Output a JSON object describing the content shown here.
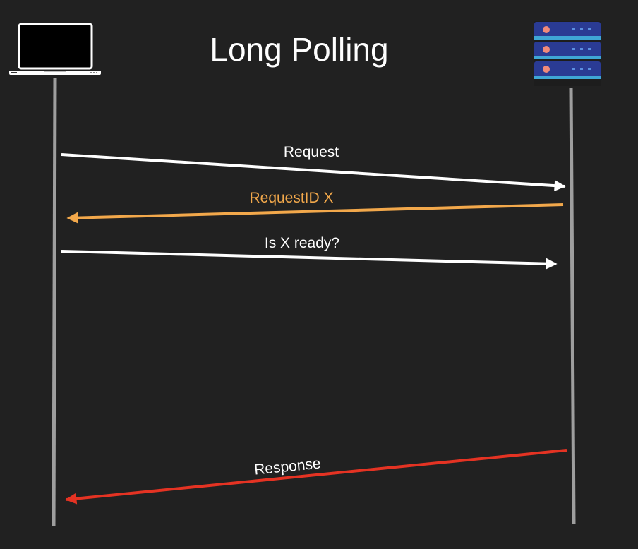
{
  "diagram": {
    "title": "Long Polling",
    "colors": {
      "background": "#212121",
      "lifeline": "#9e9e9e",
      "default_arrow": "#ffffff",
      "requestid_arrow": "#f2a84b",
      "response_arrow": "#e53323",
      "server_panel": "#2a3b94",
      "server_led": "#f08a7a"
    },
    "participants": [
      {
        "id": "client",
        "icon": "laptop-icon"
      },
      {
        "id": "server",
        "icon": "server-rack-icon"
      }
    ],
    "messages": [
      {
        "id": "request",
        "label": "Request",
        "from": "client",
        "to": "server",
        "color": "#ffffff"
      },
      {
        "id": "requestid",
        "label": "RequestID X",
        "from": "server",
        "to": "client",
        "color": "#f2a84b"
      },
      {
        "id": "is-ready",
        "label": "Is X ready?",
        "from": "client",
        "to": "server",
        "color": "#ffffff"
      },
      {
        "id": "response",
        "label": "Response",
        "from": "server",
        "to": "client",
        "color": "#e53323"
      }
    ]
  }
}
